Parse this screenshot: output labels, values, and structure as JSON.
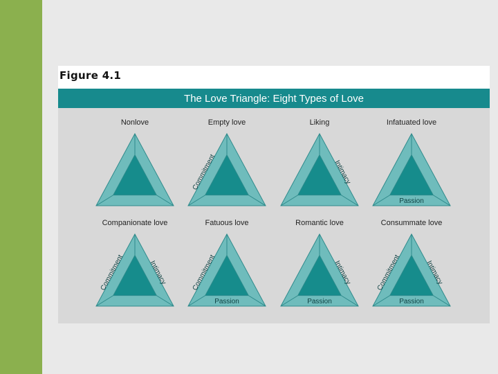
{
  "figure_label": "Figure 4.1",
  "title": "The Love Triangle: Eight Types of Love",
  "colors": {
    "sidebar": "#8bb04e",
    "title_bar": "#178a8d",
    "triangle_outer": "#6fbcbc",
    "triangle_inner": "#168c8c",
    "triangle_edge": "#2f8a8b",
    "panel_bg": "#d8d8d8"
  },
  "triangles": [
    {
      "name": "Nonlove",
      "commitment": "",
      "intimacy": "",
      "passion": ""
    },
    {
      "name": "Empty love",
      "commitment": "Commitment",
      "intimacy": "",
      "passion": ""
    },
    {
      "name": "Liking",
      "commitment": "",
      "intimacy": "Intimacy",
      "passion": ""
    },
    {
      "name": "Infatuated love",
      "commitment": "",
      "intimacy": "",
      "passion": "Passion"
    },
    {
      "name": "Companionate love",
      "commitment": "Commitment",
      "intimacy": "Intimacy",
      "passion": ""
    },
    {
      "name": "Fatuous love",
      "commitment": "Commitment",
      "intimacy": "",
      "passion": "Passion"
    },
    {
      "name": "Romantic love",
      "commitment": "",
      "intimacy": "Intimacy",
      "passion": "Passion"
    },
    {
      "name": "Consummate love",
      "commitment": "Commitment",
      "intimacy": "Intimacy",
      "passion": "Passion"
    }
  ]
}
